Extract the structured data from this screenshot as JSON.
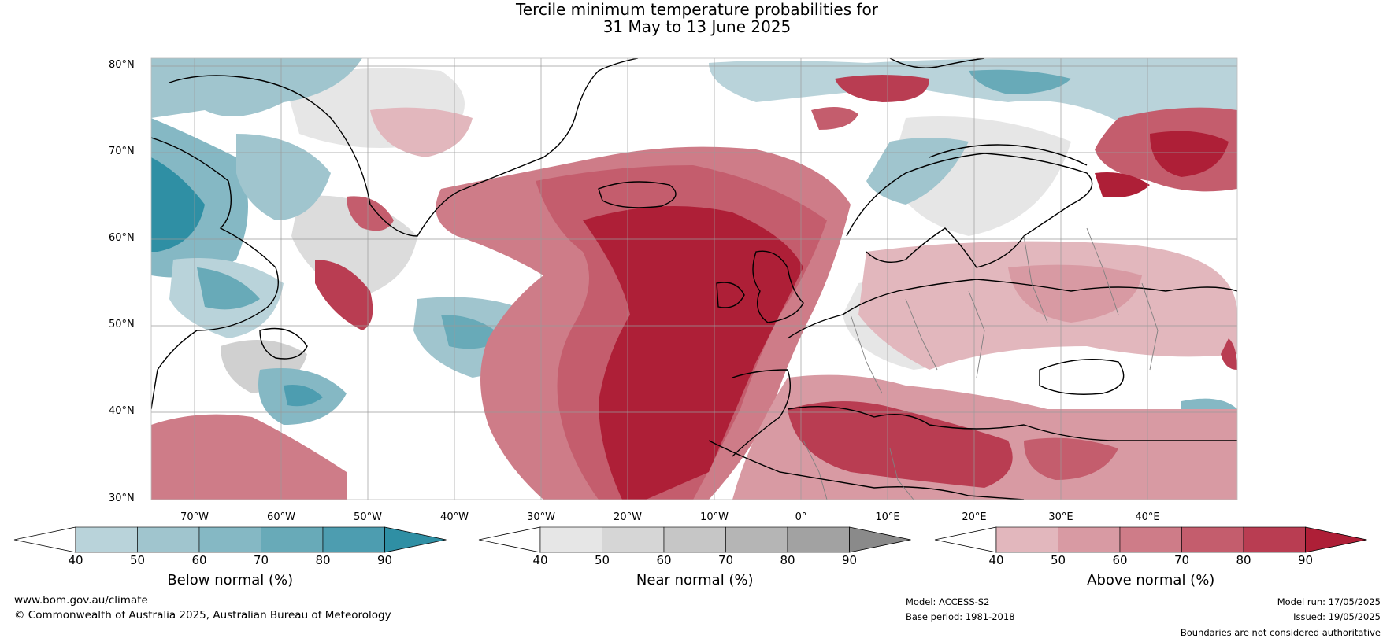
{
  "title": {
    "line1": "Tercile minimum temperature probabilities for",
    "line2": "31 May to 13 June 2025"
  },
  "latitude_labels": [
    "80°N",
    "70°N",
    "60°N",
    "50°N",
    "40°N",
    "30°N"
  ],
  "longitude_labels": [
    "70°W",
    "60°W",
    "50°W",
    "40°W",
    "30°W",
    "20°W",
    "10°W",
    "0°",
    "10°E",
    "20°E",
    "30°E",
    "40°E"
  ],
  "colorbars": [
    {
      "title": "Below normal (%)",
      "ticks": [
        "40",
        "50",
        "60",
        "70",
        "80",
        "90"
      ],
      "colors": [
        "#ffffff",
        "#b9d3da",
        "#a0c5ce",
        "#85b8c4",
        "#68aab8",
        "#4d9db0",
        "#2f8fa4"
      ]
    },
    {
      "title": "Near normal (%)",
      "ticks": [
        "40",
        "50",
        "60",
        "70",
        "80",
        "90"
      ],
      "colors": [
        "#ffffff",
        "#e6e6e6",
        "#d6d6d6",
        "#c6c6c6",
        "#b5b5b5",
        "#a2a2a2",
        "#8a8a8a"
      ]
    },
    {
      "title": "Above normal (%)",
      "ticks": [
        "40",
        "50",
        "60",
        "70",
        "80",
        "90"
      ],
      "colors": [
        "#ffffff",
        "#e2b7bd",
        "#d89aa3",
        "#ce7c88",
        "#c45d6d",
        "#b93d52",
        "#ae1f37"
      ]
    }
  ],
  "footer": {
    "website": "www.bom.gov.au/climate",
    "copyright": "© Commonwealth of Australia 2025, Australian Bureau of Meteorology",
    "model": "Model: ACCESS-S2",
    "base_period": "Base period: 1981-2018",
    "model_run": "Model run: 17/05/2025",
    "issued": "Issued: 19/05/2025",
    "disclaimer": "Boundaries are not considered authoritative"
  }
}
